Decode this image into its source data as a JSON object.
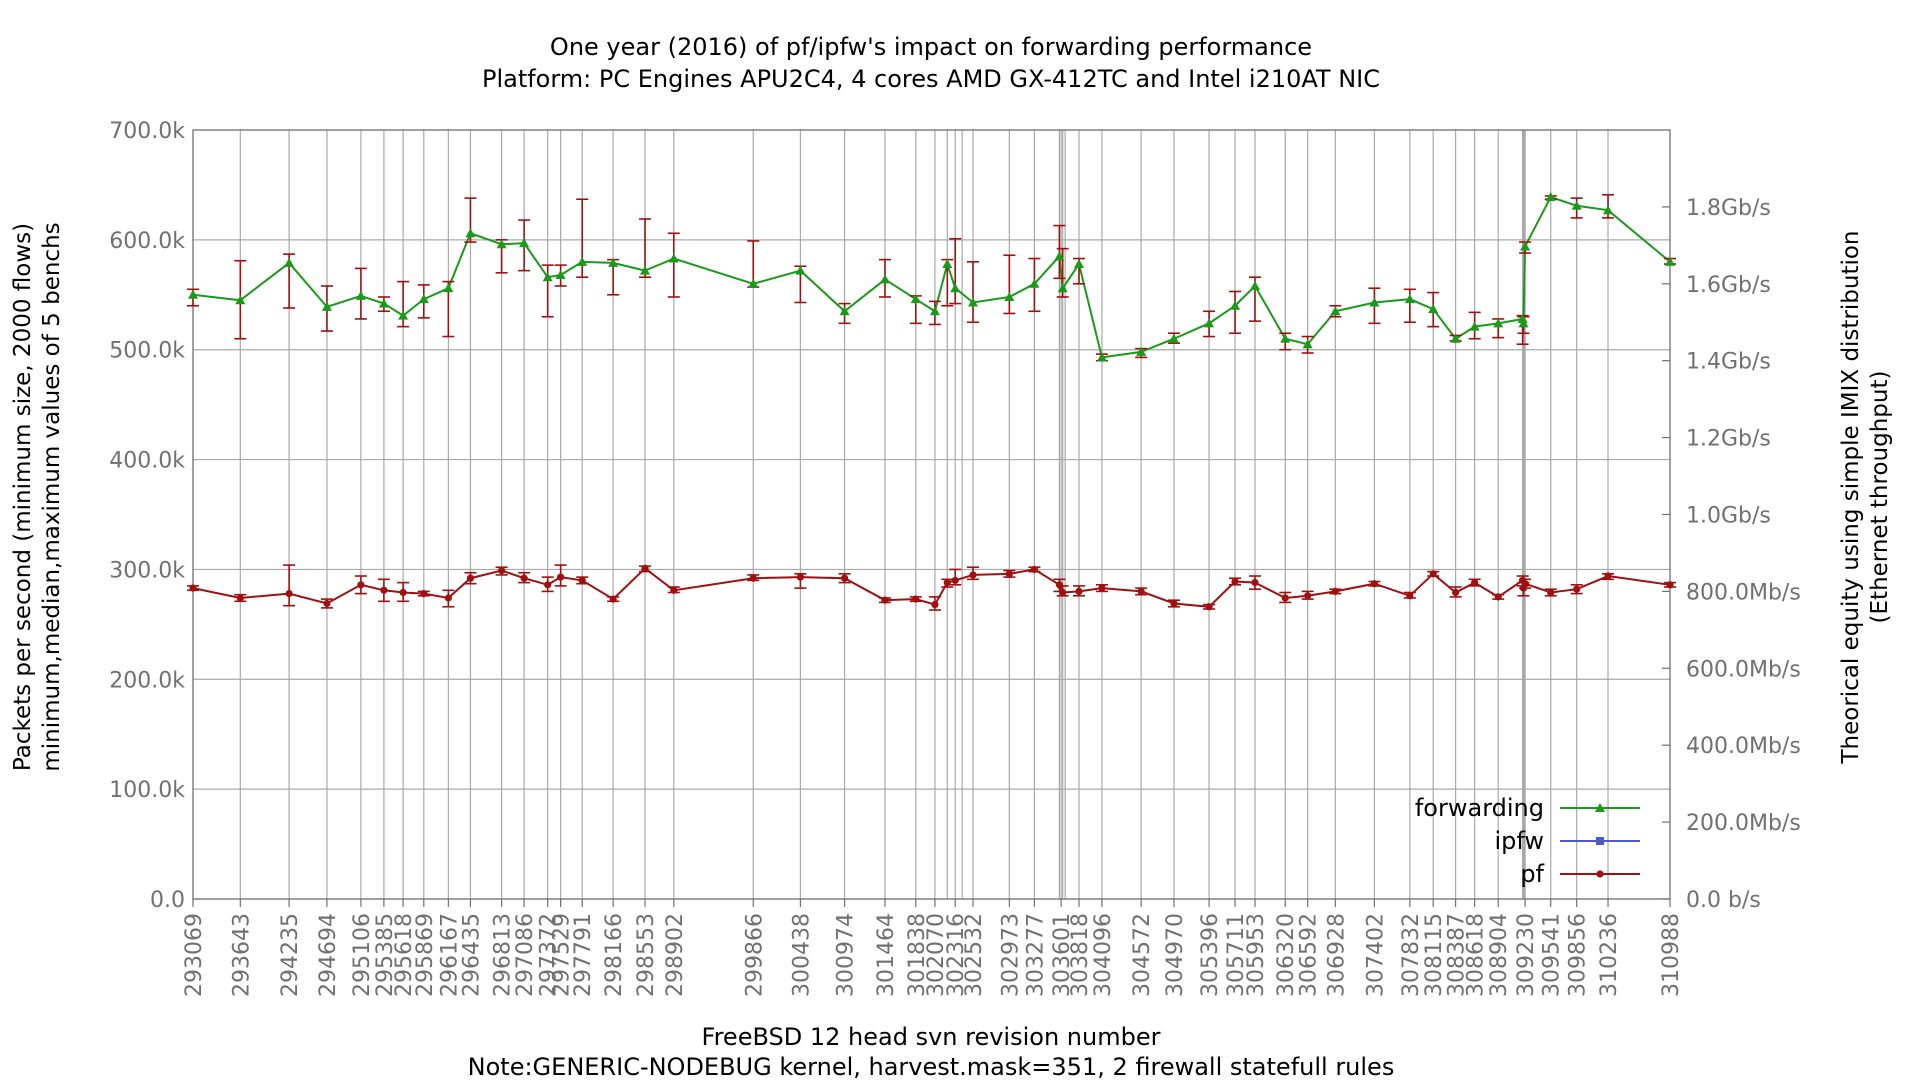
{
  "chart_data": {
    "type": "line",
    "title": "One year (2016) of pf/ipfw's impact on forwarding performance",
    "subtitle": "Platform: PC Engines APU2C4, 4 cores AMD GX-412TC and Intel i210AT NIC",
    "xlabel": "FreeBSD 12 head svn revision number",
    "xnote": "Note:GENERIC-NODEBUG kernel, harvest.mask=351, 2 firewall statefull rules",
    "ylabel": [
      "Packets per second (minimum size, 2000 flows)",
      "minimum,median,maximum values of 5 benchs"
    ],
    "y2label": [
      "Theorical equity using simple IMIX distribution",
      "(Ethernet throughput)"
    ],
    "ylim": [
      0,
      700000
    ],
    "yticks": [
      {
        "value": 0,
        "label": "0.0"
      },
      {
        "value": 100000,
        "label": "100.0k"
      },
      {
        "value": 200000,
        "label": "200.0k"
      },
      {
        "value": 300000,
        "label": "300.0k"
      },
      {
        "value": 400000,
        "label": "400.0k"
      },
      {
        "value": 500000,
        "label": "500.0k"
      },
      {
        "value": 600000,
        "label": "600.0k"
      },
      {
        "value": 700000,
        "label": "700.0k"
      }
    ],
    "y2ticks": [
      {
        "value": 0,
        "label": "0.0 b/s"
      },
      {
        "value": 70000,
        "label": "200.0Mb/s"
      },
      {
        "value": 140000,
        "label": "400.0Mb/s"
      },
      {
        "value": 210000,
        "label": "600.0Mb/s"
      },
      {
        "value": 280000,
        "label": "800.0Mb/s"
      },
      {
        "value": 350000,
        "label": "1.0Gb/s"
      },
      {
        "value": 420000,
        "label": "1.2Gb/s"
      },
      {
        "value": 490000,
        "label": "1.4Gb/s"
      },
      {
        "value": 560000,
        "label": "1.6Gb/s"
      },
      {
        "value": 630000,
        "label": "1.8Gb/s"
      }
    ],
    "xlim": [
      293069,
      310988
    ],
    "xticks": [
      293069,
      293643,
      294235,
      294694,
      295106,
      295385,
      295618,
      295869,
      296167,
      296435,
      296813,
      297086,
      297372,
      297529,
      297791,
      298166,
      298553,
      298902,
      299866,
      300438,
      300974,
      301464,
      301838,
      302070,
      302316,
      302532,
      302973,
      303277,
      303601,
      303818,
      304096,
      304572,
      304970,
      305396,
      305711,
      305953,
      306320,
      306592,
      306928,
      307402,
      307832,
      308115,
      308387,
      308618,
      308904,
      309230,
      309541,
      309856,
      310236,
      310988
    ],
    "xtick_labels": [
      "293069",
      "293643",
      "294235",
      "294694",
      "295106",
      "295385",
      "295618",
      "295869",
      "296167",
      "296435",
      "296813",
      "297086",
      "297372",
      "297529",
      "297791",
      "298166",
      "298553",
      "298902",
      "299866",
      "300438",
      "300974",
      "301464",
      "301838",
      "302070",
      "302316",
      "302532",
      "302973",
      "303277",
      "303601",
      "303818",
      "304096",
      "304572",
      "304970",
      "305396",
      "305711",
      "305953",
      "306320",
      "306592",
      "306928",
      "307402",
      "307832",
      "308115",
      "308387",
      "308618",
      "308904",
      "309230",
      "309541",
      "309856",
      "310236",
      "310988"
    ],
    "extra_gridlines": [
      302220,
      302400,
      303580,
      303620,
      303650,
      309200,
      309210,
      309220
    ],
    "grid": true,
    "legend_position": "bottom-right",
    "series": [
      {
        "name": "forwarding",
        "color": "#1a9a1a",
        "marker": "triangle",
        "points": [
          {
            "x": 293069,
            "y": 550000,
            "min": 540000,
            "max": 555000
          },
          {
            "x": 293643,
            "y": 545000,
            "min": 510000,
            "max": 581000
          },
          {
            "x": 294235,
            "y": 579000,
            "min": 538000,
            "max": 587000
          },
          {
            "x": 294694,
            "y": 539000,
            "min": 517000,
            "max": 558000
          },
          {
            "x": 295106,
            "y": 549000,
            "min": 528000,
            "max": 574000
          },
          {
            "x": 295385,
            "y": 542000,
            "min": 535000,
            "max": 548000
          },
          {
            "x": 295618,
            "y": 531000,
            "min": 521000,
            "max": 562000
          },
          {
            "x": 295869,
            "y": 546000,
            "min": 529000,
            "max": 559000
          },
          {
            "x": 296167,
            "y": 556000,
            "min": 512000,
            "max": 562000
          },
          {
            "x": 296435,
            "y": 606000,
            "min": 598000,
            "max": 638000
          },
          {
            "x": 296813,
            "y": 596000,
            "min": 570000,
            "max": 600000
          },
          {
            "x": 297086,
            "y": 597000,
            "min": 572000,
            "max": 618000
          },
          {
            "x": 297372,
            "y": 566000,
            "min": 530000,
            "max": 577000
          },
          {
            "x": 297529,
            "y": 568000,
            "min": 558000,
            "max": 577000
          },
          {
            "x": 297791,
            "y": 580000,
            "min": 566000,
            "max": 637000
          },
          {
            "x": 298166,
            "y": 579000,
            "min": 550000,
            "max": 582000
          },
          {
            "x": 298553,
            "y": 572000,
            "min": 566000,
            "max": 619000
          },
          {
            "x": 298902,
            "y": 583000,
            "min": 548000,
            "max": 606000
          },
          {
            "x": 299866,
            "y": 560000,
            "min": 557000,
            "max": 599000
          },
          {
            "x": 300438,
            "y": 572000,
            "min": 543000,
            "max": 576000
          },
          {
            "x": 300974,
            "y": 535000,
            "min": 524000,
            "max": 542000
          },
          {
            "x": 301464,
            "y": 564000,
            "min": 548000,
            "max": 582000
          },
          {
            "x": 301838,
            "y": 546000,
            "min": 524000,
            "max": 549000
          },
          {
            "x": 302070,
            "y": 535000,
            "min": 523000,
            "max": 544000
          },
          {
            "x": 302220,
            "y": 578000,
            "min": 540000,
            "max": 582000
          },
          {
            "x": 302316,
            "y": 556000,
            "min": 542000,
            "max": 601000
          },
          {
            "x": 302532,
            "y": 543000,
            "min": 525000,
            "max": 580000
          },
          {
            "x": 302973,
            "y": 548000,
            "min": 533000,
            "max": 586000
          },
          {
            "x": 303277,
            "y": 560000,
            "min": 535000,
            "max": 583000
          },
          {
            "x": 303580,
            "y": 585000,
            "min": 565000,
            "max": 613000
          },
          {
            "x": 303620,
            "y": 556000,
            "min": 548000,
            "max": 592000
          },
          {
            "x": 303818,
            "y": 578000,
            "min": 560000,
            "max": 583000
          },
          {
            "x": 304096,
            "y": 493000,
            "min": 490000,
            "max": 496000
          },
          {
            "x": 304572,
            "y": 498000,
            "min": 493000,
            "max": 501000
          },
          {
            "x": 304970,
            "y": 510000,
            "min": 506000,
            "max": 515000
          },
          {
            "x": 305396,
            "y": 524000,
            "min": 512000,
            "max": 535000
          },
          {
            "x": 305711,
            "y": 540000,
            "min": 515000,
            "max": 553000
          },
          {
            "x": 305953,
            "y": 558000,
            "min": 526000,
            "max": 566000
          },
          {
            "x": 306320,
            "y": 510000,
            "min": 500000,
            "max": 515000
          },
          {
            "x": 306592,
            "y": 505000,
            "min": 497000,
            "max": 512000
          },
          {
            "x": 306928,
            "y": 535000,
            "min": 530000,
            "max": 540000
          },
          {
            "x": 307402,
            "y": 543000,
            "min": 524000,
            "max": 556000
          },
          {
            "x": 307832,
            "y": 546000,
            "min": 525000,
            "max": 555000
          },
          {
            "x": 308115,
            "y": 537000,
            "min": 521000,
            "max": 552000
          },
          {
            "x": 308387,
            "y": 510000,
            "min": 508000,
            "max": 513000
          },
          {
            "x": 308618,
            "y": 521000,
            "min": 510000,
            "max": 534000
          },
          {
            "x": 308904,
            "y": 524000,
            "min": 511000,
            "max": 528000
          },
          {
            "x": 309200,
            "y": 528000,
            "min": 505000,
            "max": 531000
          },
          {
            "x": 309210,
            "y": 524000,
            "min": 515000,
            "max": 530000
          },
          {
            "x": 309230,
            "y": 594000,
            "min": 588000,
            "max": 598000
          },
          {
            "x": 309541,
            "y": 639000,
            "min": 637000,
            "max": 640000
          },
          {
            "x": 309856,
            "y": 631000,
            "min": 620000,
            "max": 638000
          },
          {
            "x": 310236,
            "y": 627000,
            "min": 620000,
            "max": 641000
          },
          {
            "x": 310988,
            "y": 580000,
            "min": 578000,
            "max": 583000
          }
        ]
      },
      {
        "name": "ipfw",
        "color": "#4a5ad0",
        "marker": "square",
        "points": []
      },
      {
        "name": "pf",
        "color": "#a01010",
        "marker": "circle",
        "points": [
          {
            "x": 293069,
            "y": 283000,
            "min": 281000,
            "max": 285000
          },
          {
            "x": 293643,
            "y": 274000,
            "min": 271000,
            "max": 277000
          },
          {
            "x": 294235,
            "y": 278000,
            "min": 267000,
            "max": 304000
          },
          {
            "x": 294694,
            "y": 269000,
            "min": 265000,
            "max": 273000
          },
          {
            "x": 295106,
            "y": 286000,
            "min": 278000,
            "max": 294000
          },
          {
            "x": 295385,
            "y": 281000,
            "min": 271000,
            "max": 291000
          },
          {
            "x": 295618,
            "y": 279000,
            "min": 271000,
            "max": 288000
          },
          {
            "x": 295869,
            "y": 278000,
            "min": 276000,
            "max": 280000
          },
          {
            "x": 296167,
            "y": 274000,
            "min": 266000,
            "max": 281000
          },
          {
            "x": 296435,
            "y": 292000,
            "min": 287000,
            "max": 297000
          },
          {
            "x": 296813,
            "y": 299000,
            "min": 295000,
            "max": 302000
          },
          {
            "x": 297086,
            "y": 292000,
            "min": 288000,
            "max": 297000
          },
          {
            "x": 297372,
            "y": 286000,
            "min": 280000,
            "max": 293000
          },
          {
            "x": 297529,
            "y": 293000,
            "min": 285000,
            "max": 304000
          },
          {
            "x": 297791,
            "y": 290000,
            "min": 287000,
            "max": 293000
          },
          {
            "x": 298166,
            "y": 273000,
            "min": 271000,
            "max": 275000
          },
          {
            "x": 298553,
            "y": 301000,
            "min": 298000,
            "max": 303000
          },
          {
            "x": 298902,
            "y": 281000,
            "min": 279000,
            "max": 284000
          },
          {
            "x": 299866,
            "y": 292000,
            "min": 290000,
            "max": 295000
          },
          {
            "x": 300438,
            "y": 293000,
            "min": 283000,
            "max": 296000
          },
          {
            "x": 300974,
            "y": 292000,
            "min": 288000,
            "max": 296000
          },
          {
            "x": 301464,
            "y": 272000,
            "min": 270000,
            "max": 274000
          },
          {
            "x": 301838,
            "y": 273000,
            "min": 271000,
            "max": 275000
          },
          {
            "x": 302070,
            "y": 268000,
            "min": 263000,
            "max": 275000
          },
          {
            "x": 302220,
            "y": 288000,
            "min": 284000,
            "max": 291000
          },
          {
            "x": 302316,
            "y": 290000,
            "min": 286000,
            "max": 300000
          },
          {
            "x": 302532,
            "y": 295000,
            "min": 291000,
            "max": 302000
          },
          {
            "x": 302973,
            "y": 296000,
            "min": 293000,
            "max": 299000
          },
          {
            "x": 303277,
            "y": 300000,
            "min": 298000,
            "max": 302000
          },
          {
            "x": 303580,
            "y": 286000,
            "min": 280000,
            "max": 291000
          },
          {
            "x": 303620,
            "y": 279000,
            "min": 276000,
            "max": 285000
          },
          {
            "x": 303818,
            "y": 280000,
            "min": 276000,
            "max": 285000
          },
          {
            "x": 304096,
            "y": 283000,
            "min": 280000,
            "max": 286000
          },
          {
            "x": 304572,
            "y": 280000,
            "min": 277000,
            "max": 283000
          },
          {
            "x": 304970,
            "y": 269000,
            "min": 266000,
            "max": 272000
          },
          {
            "x": 305396,
            "y": 266000,
            "min": 264000,
            "max": 268000
          },
          {
            "x": 305711,
            "y": 289000,
            "min": 286000,
            "max": 292000
          },
          {
            "x": 305953,
            "y": 288000,
            "min": 282000,
            "max": 294000
          },
          {
            "x": 306320,
            "y": 274000,
            "min": 270000,
            "max": 279000
          },
          {
            "x": 306592,
            "y": 276000,
            "min": 273000,
            "max": 280000
          },
          {
            "x": 306928,
            "y": 280000,
            "min": 278000,
            "max": 282000
          },
          {
            "x": 307402,
            "y": 287000,
            "min": 285000,
            "max": 289000
          },
          {
            "x": 307832,
            "y": 276000,
            "min": 274000,
            "max": 279000
          },
          {
            "x": 308115,
            "y": 296000,
            "min": 294000,
            "max": 298000
          },
          {
            "x": 308387,
            "y": 279000,
            "min": 275000,
            "max": 284000
          },
          {
            "x": 308618,
            "y": 288000,
            "min": 285000,
            "max": 291000
          },
          {
            "x": 308904,
            "y": 275000,
            "min": 273000,
            "max": 277000
          },
          {
            "x": 309200,
            "y": 290000,
            "min": 285000,
            "max": 294000
          },
          {
            "x": 309210,
            "y": 283000,
            "min": 276000,
            "max": 288000
          },
          {
            "x": 309230,
            "y": 287000,
            "min": 283000,
            "max": 291000
          },
          {
            "x": 309541,
            "y": 279000,
            "min": 276000,
            "max": 282000
          },
          {
            "x": 309856,
            "y": 282000,
            "min": 278000,
            "max": 286000
          },
          {
            "x": 310236,
            "y": 294000,
            "min": 291000,
            "max": 296000
          },
          {
            "x": 310988,
            "y": 286000,
            "min": 284000,
            "max": 288000
          }
        ]
      }
    ]
  }
}
